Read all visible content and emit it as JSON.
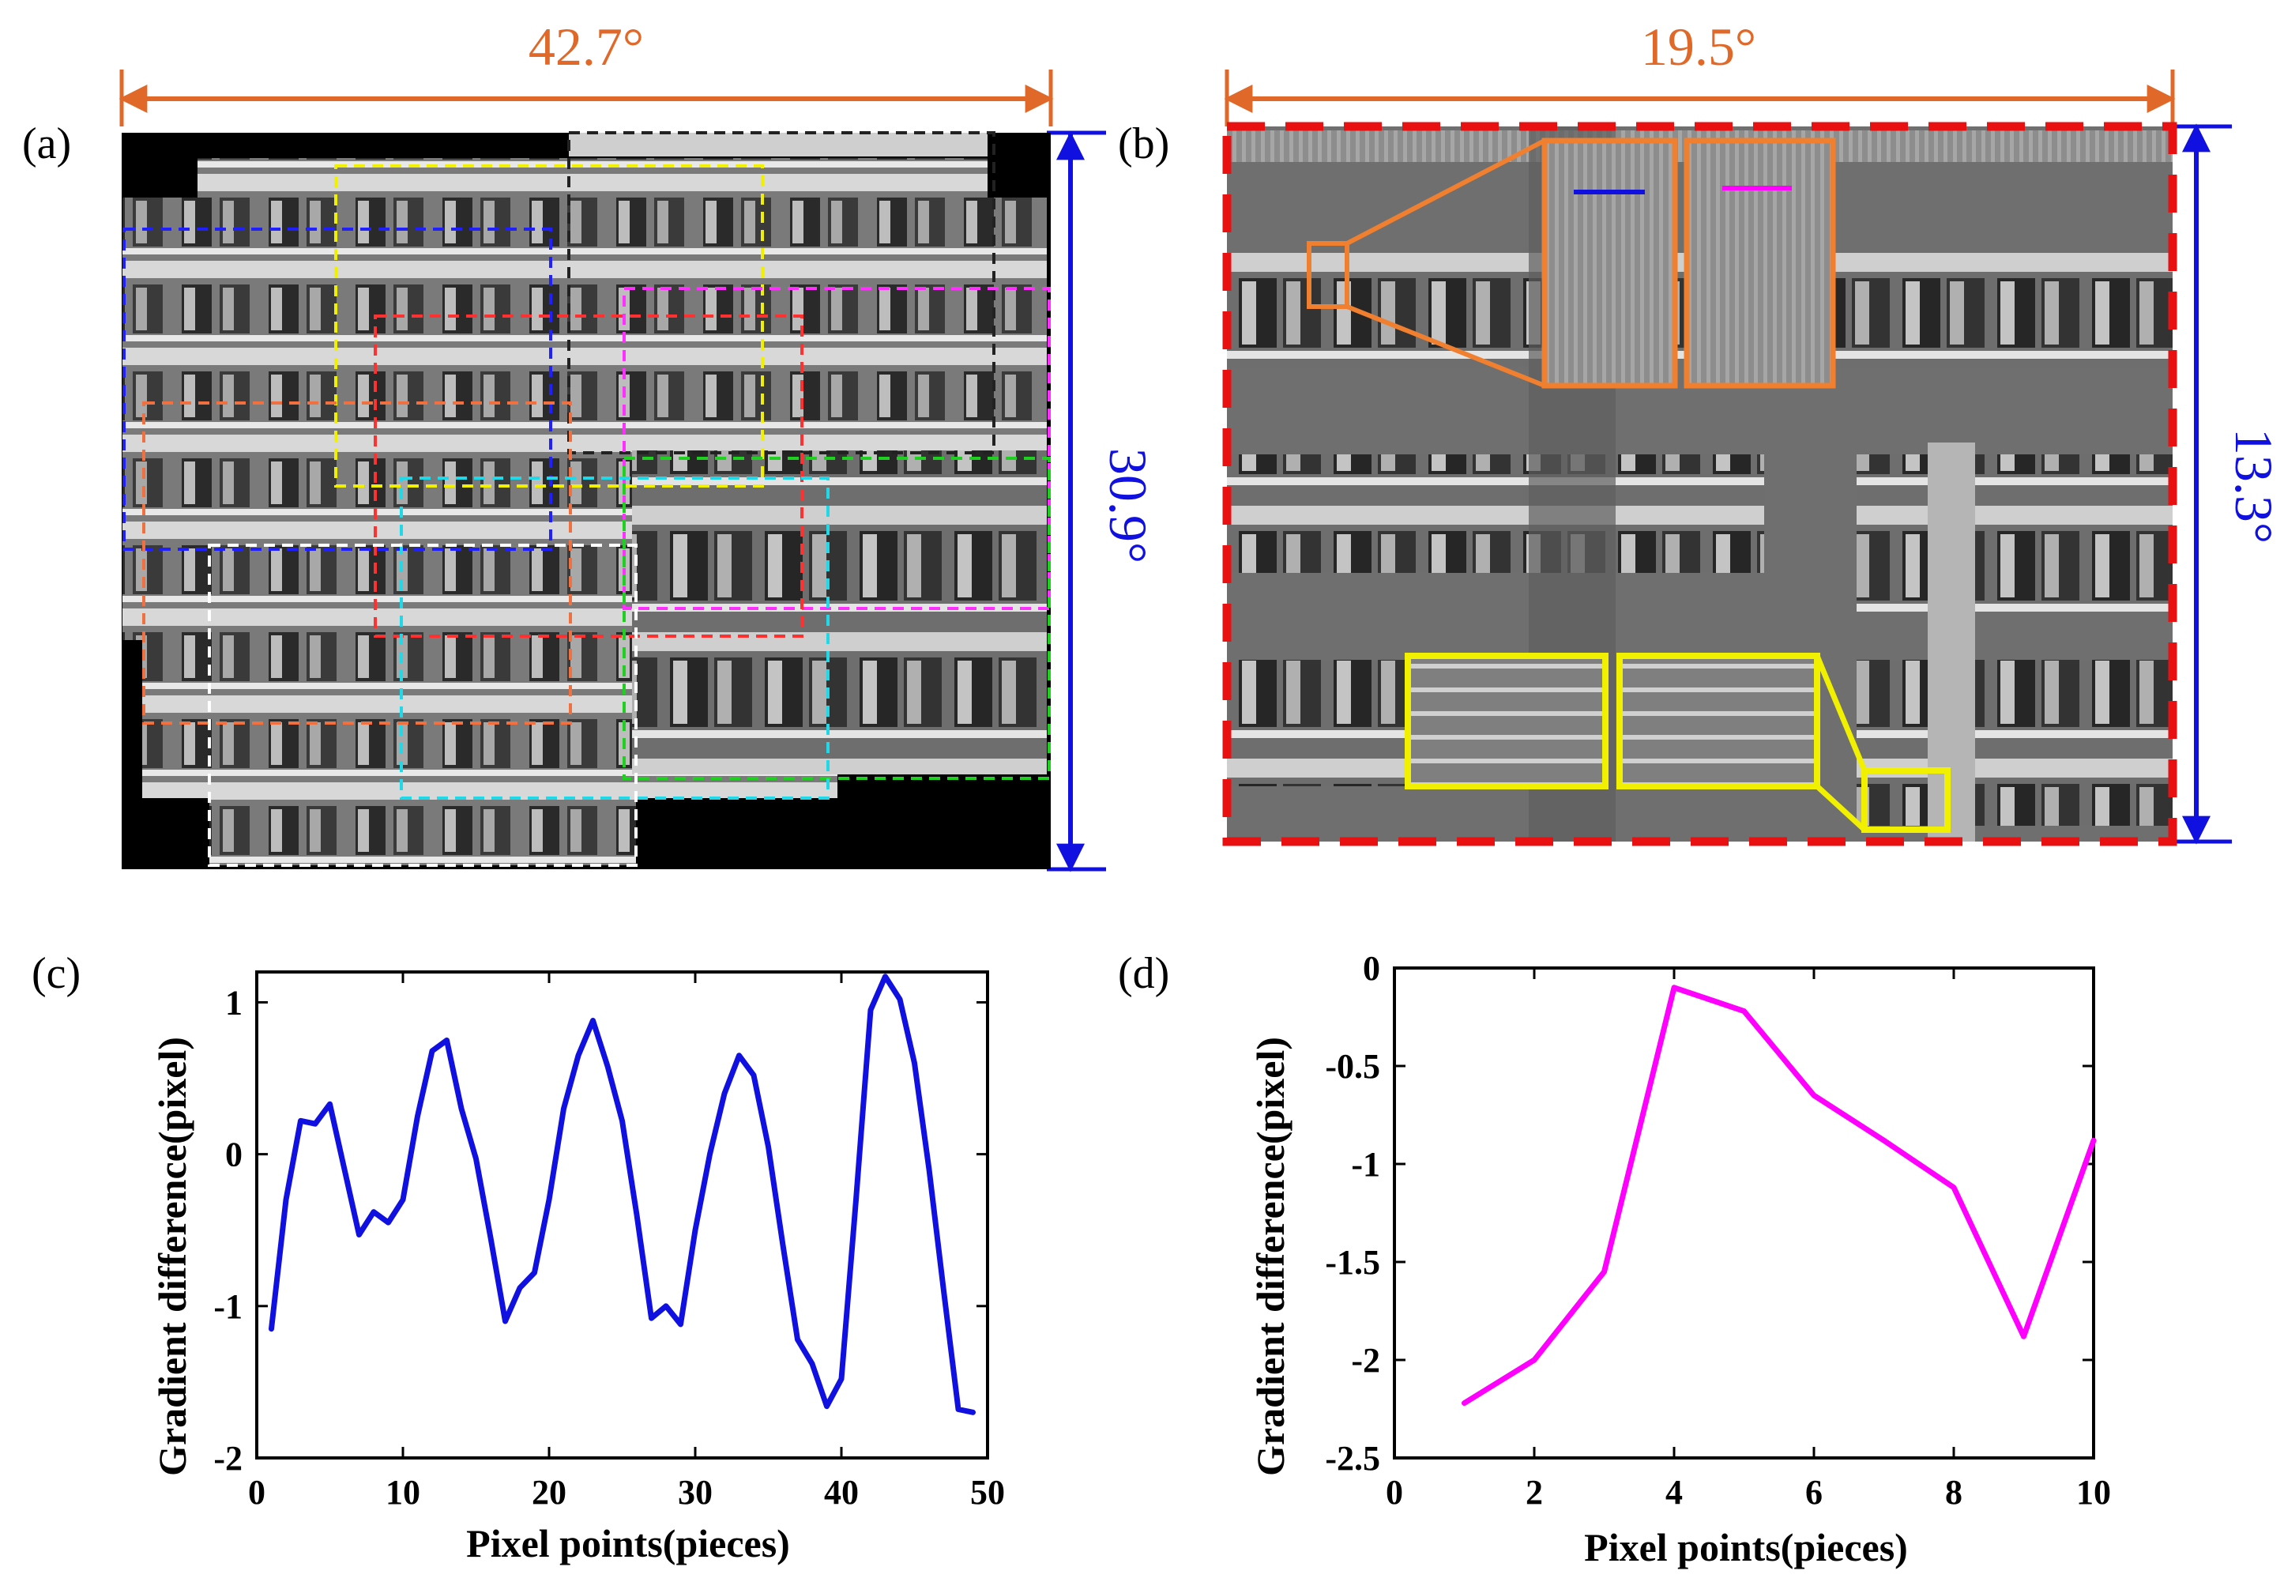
{
  "figure": {
    "panels": {
      "a": {
        "label": "(a)",
        "fov_horizontal": "42.7°",
        "fov_vertical": "30.9°"
      },
      "b": {
        "label": "(b)",
        "fov_horizontal": "19.5°",
        "fov_vertical": "13.3°"
      },
      "c": {
        "label": "(c)"
      },
      "d": {
        "label": "(d)"
      }
    },
    "colors": {
      "orange": "#e0692a",
      "blue": "#1010e0",
      "magenta": "#ff00ff",
      "red": "#e81010",
      "yellow": "#f0f000",
      "frame_orange": "#f08030"
    }
  },
  "chart_data": [
    {
      "type": "line",
      "panel": "(c)",
      "title": "",
      "xlabel": "Pixel points(pieces)",
      "ylabel": "Gradient difference(pixel)",
      "xlim": [
        0,
        50
      ],
      "ylim": [
        -2,
        1.2
      ],
      "xticks": [
        0,
        10,
        20,
        30,
        40,
        50
      ],
      "yticks": [
        -2,
        -1,
        0,
        1
      ],
      "color": "#1010e0",
      "x": [
        1,
        2,
        3,
        4,
        5,
        6,
        7,
        8,
        9,
        10,
        11,
        12,
        13,
        14,
        15,
        16,
        17,
        18,
        19,
        20,
        21,
        22,
        23,
        24,
        25,
        26,
        27,
        28,
        29,
        30,
        31,
        32,
        33,
        34,
        35,
        36,
        37,
        38,
        39,
        40,
        41,
        42,
        43,
        44,
        45,
        46,
        47,
        48,
        49
      ],
      "y": [
        -1.15,
        -0.3,
        0.22,
        0.2,
        0.33,
        -0.1,
        -0.53,
        -0.38,
        -0.45,
        -0.3,
        0.25,
        0.68,
        0.75,
        0.3,
        -0.03,
        -0.55,
        -1.1,
        -0.88,
        -0.78,
        -0.3,
        0.3,
        0.65,
        0.88,
        0.58,
        0.22,
        -0.4,
        -1.08,
        -1.0,
        -1.12,
        -0.5,
        0.0,
        0.4,
        0.65,
        0.52,
        0.05,
        -0.6,
        -1.22,
        -1.38,
        -1.66,
        -1.48,
        -0.3,
        0.95,
        1.17,
        1.02,
        0.6,
        -0.1,
        -0.9,
        -1.68,
        -1.7
      ]
    },
    {
      "type": "line",
      "panel": "(d)",
      "title": "",
      "xlabel": "Pixel points(pieces)",
      "ylabel": "Gradient difference(pixel)",
      "xlim": [
        0,
        10
      ],
      "ylim": [
        -2.5,
        0
      ],
      "xticks": [
        0,
        2,
        4,
        6,
        8,
        10
      ],
      "yticks": [
        -2.5,
        -2,
        -1.5,
        -1,
        -0.5,
        0
      ],
      "color": "#ff00ff",
      "x": [
        1,
        2,
        3,
        4,
        5,
        6,
        7,
        8,
        9,
        10
      ],
      "y": [
        -2.22,
        -2.0,
        -1.55,
        -0.1,
        -0.22,
        -0.65,
        -0.88,
        -1.12,
        -1.88,
        -0.88
      ]
    }
  ]
}
